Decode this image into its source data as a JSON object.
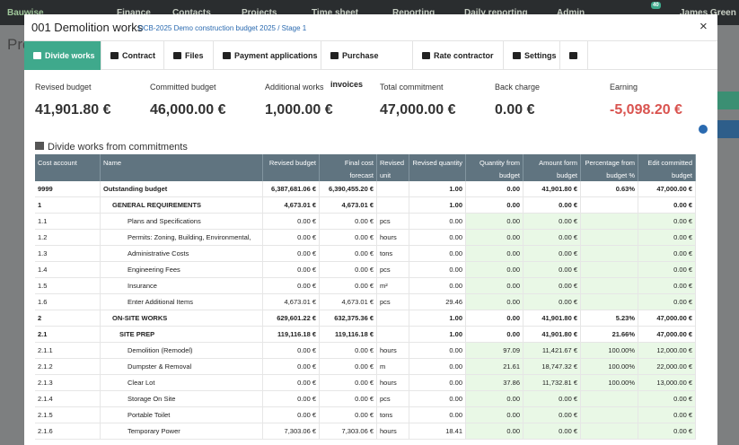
{
  "nav": {
    "brand": "Bauwise",
    "items": [
      "Finance",
      "Contacts",
      "Projects",
      "Time sheet",
      "Reporting",
      "Daily reporting",
      "Admin"
    ],
    "user": "James Green",
    "badge": "40"
  },
  "background": {
    "title": "Proj"
  },
  "modal": {
    "title": "001 Demolition works",
    "breadcrumb": "DCB-2025 Demo construction budget 2025 / Stage 1",
    "close": "×",
    "tabs": [
      "Divide works",
      "Contract",
      "Files",
      "Payment applications",
      "Purchase invoices",
      "Rate contractor",
      "Settings"
    ],
    "summary": [
      {
        "label": "Revised budget",
        "value": "41,901.80 €"
      },
      {
        "label": "Committed budget",
        "value": "46,000.00 €"
      },
      {
        "label": "Additional works",
        "value": "1,000.00 €"
      },
      {
        "label": "Total commitment",
        "value": "47,000.00 €"
      },
      {
        "label": "Back charge",
        "value": "0.00 €"
      },
      {
        "label": "Earning",
        "value": "-5,098.20 €"
      }
    ],
    "section_title": "Divide works from commitments",
    "table": {
      "headers": [
        "Cost account",
        "Name",
        "Revised budget",
        "Final cost forecast",
        "Revised unit",
        "Revised quantity",
        "Quantity from budget",
        "Amount form budget",
        "Percentage from budget %",
        "Edit committed budget"
      ],
      "rows": [
        [
          "9999",
          "Outstanding budget",
          "6,387,681.06 €",
          "6,390,455.20 €",
          "",
          "1.00",
          "0.00",
          "41,901.80 €",
          "0.63%",
          "47,000.00 €"
        ],
        [
          "1",
          "GENERAL REQUIREMENTS",
          "4,673.01 €",
          "4,673.01 €",
          "",
          "1.00",
          "0.00",
          "0.00 €",
          "",
          "0.00 €"
        ],
        [
          "1.1",
          "Plans and Specifications",
          "0.00 €",
          "0.00 €",
          "pcs",
          "0.00",
          "0.00",
          "0.00 €",
          "",
          "0.00 €"
        ],
        [
          "1.2",
          "Permits: Zoning, Building, Environmental,",
          "0.00 €",
          "0.00 €",
          "hours",
          "0.00",
          "0.00",
          "0.00 €",
          "",
          "0.00 €"
        ],
        [
          "1.3",
          "Administrative Costs",
          "0.00 €",
          "0.00 €",
          "tons",
          "0.00",
          "0.00",
          "0.00 €",
          "",
          "0.00 €"
        ],
        [
          "1.4",
          "Engineering Fees",
          "0.00 €",
          "0.00 €",
          "pcs",
          "0.00",
          "0.00",
          "0.00 €",
          "",
          "0.00 €"
        ],
        [
          "1.5",
          "Insurance",
          "0.00 €",
          "0.00 €",
          "m²",
          "0.00",
          "0.00",
          "0.00 €",
          "",
          "0.00 €"
        ],
        [
          "1.6",
          "Enter Additional Items",
          "4,673.01 €",
          "4,673.01 €",
          "pcs",
          "29.46",
          "0.00",
          "0.00 €",
          "",
          "0.00 €"
        ],
        [
          "2",
          "ON-SITE WORKS",
          "629,601.22 €",
          "632,375.36 €",
          "",
          "1.00",
          "0.00",
          "41,901.80 €",
          "5.23%",
          "47,000.00 €"
        ],
        [
          "2.1",
          "SITE PREP",
          "119,116.18 €",
          "119,116.18 €",
          "",
          "1.00",
          "0.00",
          "41,901.80 €",
          "21.66%",
          "47,000.00 €"
        ],
        [
          "2.1.1",
          "Demolition (Remodel)",
          "0.00 €",
          "0.00 €",
          "hours",
          "0.00",
          "97.09",
          "11,421.67 €",
          "100.00%",
          "12,000.00 €"
        ],
        [
          "2.1.2",
          "Dumpster & Removal",
          "0.00 €",
          "0.00 €",
          "m",
          "0.00",
          "21.61",
          "18,747.32 €",
          "100.00%",
          "22,000.00 €"
        ],
        [
          "2.1.3",
          "Clear Lot",
          "0.00 €",
          "0.00 €",
          "hours",
          "0.00",
          "37.86",
          "11,732.81 €",
          "100.00%",
          "13,000.00 €"
        ],
        [
          "2.1.4",
          "Storage On Site",
          "0.00 €",
          "0.00 €",
          "pcs",
          "0.00",
          "0.00",
          "0.00 €",
          "",
          "0.00 €"
        ],
        [
          "2.1.5",
          "Portable Toilet",
          "0.00 €",
          "0.00 €",
          "tons",
          "0.00",
          "0.00",
          "0.00 €",
          "",
          "0.00 €"
        ],
        [
          "2.1.6",
          "Temporary Power",
          "7,303.06 €",
          "7,303.06 €",
          "hours",
          "18.41",
          "0.00",
          "0.00 €",
          "",
          "0.00 €"
        ]
      ]
    }
  }
}
